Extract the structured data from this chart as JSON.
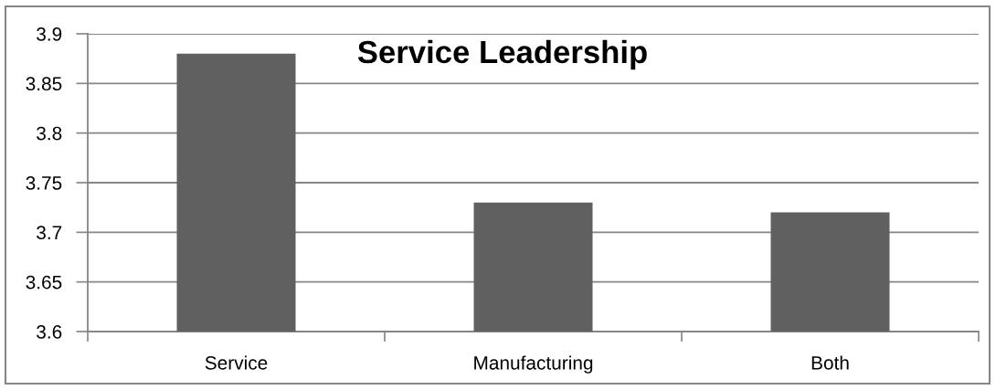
{
  "chart_data": {
    "type": "bar",
    "title": "Service Leadership",
    "categories": [
      "Service",
      "Manufacturing",
      "Both"
    ],
    "values": [
      3.88,
      3.73,
      3.72
    ],
    "color": "#606060",
    "ylim": [
      3.6,
      3.9
    ],
    "yticks": [
      3.6,
      3.65,
      3.7,
      3.75,
      3.8,
      3.85,
      3.9
    ],
    "grid": "y"
  }
}
